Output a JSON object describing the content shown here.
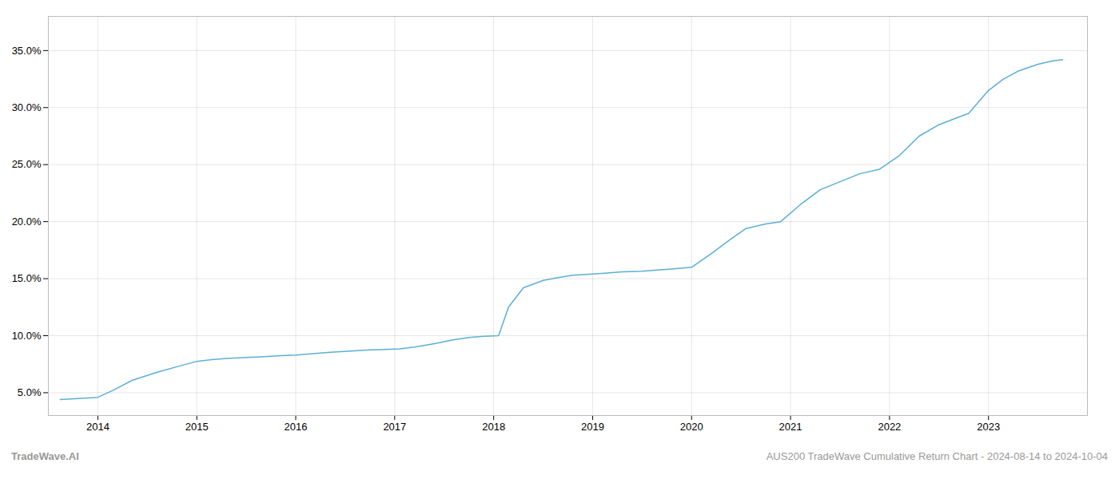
{
  "chart_data": {
    "type": "line",
    "x": [
      2013.62,
      2014.0,
      2014.15,
      2014.35,
      2014.6,
      2014.85,
      2015.0,
      2015.15,
      2015.3,
      2015.5,
      2015.65,
      2015.85,
      2016.0,
      2016.15,
      2016.35,
      2016.55,
      2016.75,
      2016.9,
      2017.05,
      2017.2,
      2017.4,
      2017.6,
      2017.75,
      2017.9,
      2018.05,
      2018.15,
      2018.3,
      2018.5,
      2018.65,
      2018.8,
      2019.0,
      2019.15,
      2019.3,
      2019.5,
      2019.65,
      2019.8,
      2020.0,
      2020.2,
      2020.4,
      2020.55,
      2020.75,
      2020.9,
      2021.1,
      2021.3,
      2021.5,
      2021.7,
      2021.9,
      2022.1,
      2022.3,
      2022.5,
      2022.65,
      2022.8,
      2023.0,
      2023.15,
      2023.3,
      2023.5,
      2023.65,
      2023.75
    ],
    "values": [
      4.4,
      4.6,
      5.2,
      6.1,
      6.8,
      7.4,
      7.75,
      7.9,
      8.0,
      8.1,
      8.15,
      8.25,
      8.3,
      8.4,
      8.55,
      8.65,
      8.75,
      8.8,
      8.85,
      9.0,
      9.3,
      9.65,
      9.85,
      9.95,
      10.0,
      12.5,
      14.2,
      14.85,
      15.1,
      15.3,
      15.4,
      15.5,
      15.6,
      15.65,
      15.75,
      15.85,
      16.0,
      17.2,
      18.5,
      19.4,
      19.8,
      20.0,
      21.5,
      22.8,
      23.5,
      24.2,
      24.6,
      25.8,
      27.5,
      28.5,
      29.0,
      29.5,
      31.5,
      32.5,
      33.2,
      33.8,
      34.1,
      34.2
    ],
    "color": "#5bafd6",
    "xlim": [
      2013.5,
      2024.0
    ],
    "xticks": [
      2014,
      2015,
      2016,
      2017,
      2018,
      2019,
      2020,
      2021,
      2022,
      2023
    ],
    "ylim": [
      3.0,
      38.0
    ],
    "yticks": [
      {
        "value": 5,
        "label": "5.0%"
      },
      {
        "value": 10,
        "label": "10.0%"
      },
      {
        "value": 15,
        "label": "15.0%"
      },
      {
        "value": 20,
        "label": "20.0%"
      },
      {
        "value": 25,
        "label": "25.0%"
      },
      {
        "value": 30,
        "label": "30.0%"
      },
      {
        "value": 35,
        "label": "35.0%"
      }
    ],
    "grid": true,
    "annotations": [
      "TradeWave.AI",
      "AUS200 TradeWave Cumulative Return Chart - 2024-08-14 to 2024-10-04"
    ]
  }
}
